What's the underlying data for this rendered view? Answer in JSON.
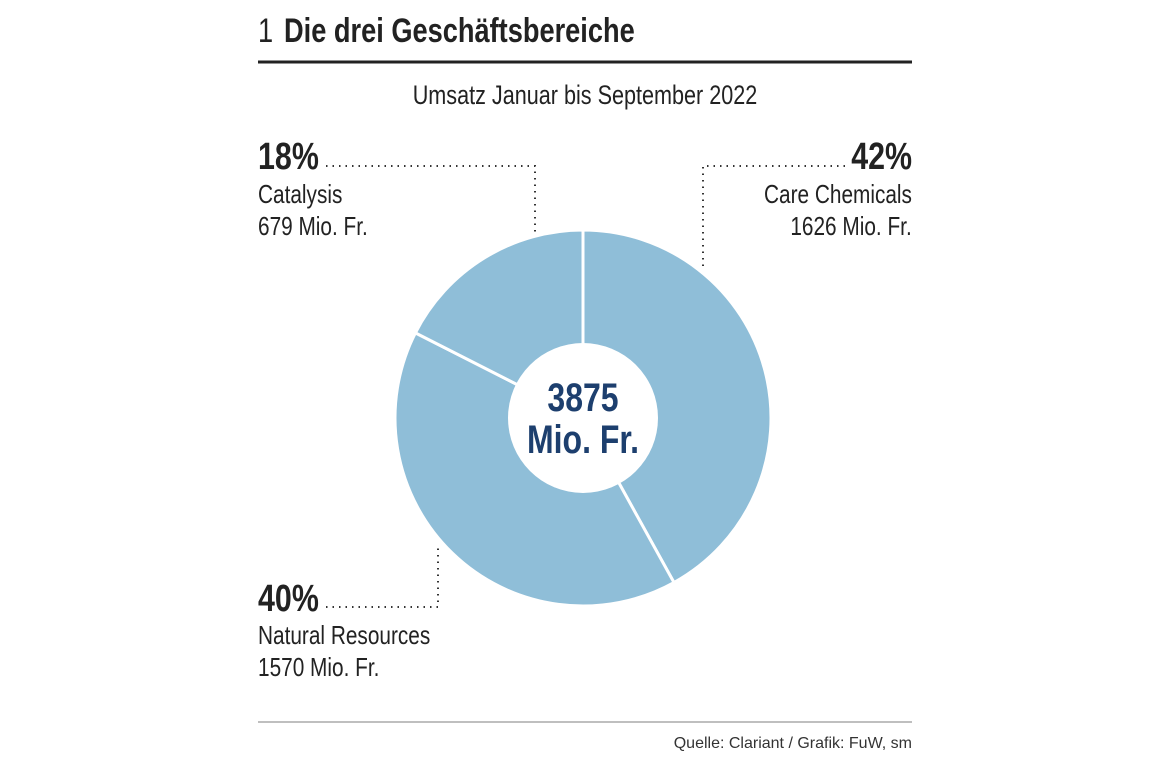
{
  "header": {
    "number": "1",
    "title": "Die drei Geschäftsbereiche"
  },
  "chart_data": {
    "type": "pie",
    "subtitle": "Umsatz Januar bis September 2022",
    "center_value": "3875",
    "center_unit": "Mio. Fr.",
    "slices": [
      {
        "name": "Care Chemicals",
        "percent": "42%",
        "value": 1626,
        "value_label": "1626 Mio. Fr."
      },
      {
        "name": "Natural Resources",
        "percent": "40%",
        "value": 1570,
        "value_label": "1570 Mio. Fr."
      },
      {
        "name": "Catalysis",
        "percent": "18%",
        "value": 679,
        "value_label": "679 Mio. Fr."
      }
    ],
    "donut": true,
    "colors": {
      "slice": "#8fbed8",
      "center_text": "#1d3f6e",
      "text": "#222222"
    }
  },
  "footer": {
    "source": "Quelle: Clariant / Grafik: FuW, sm"
  }
}
